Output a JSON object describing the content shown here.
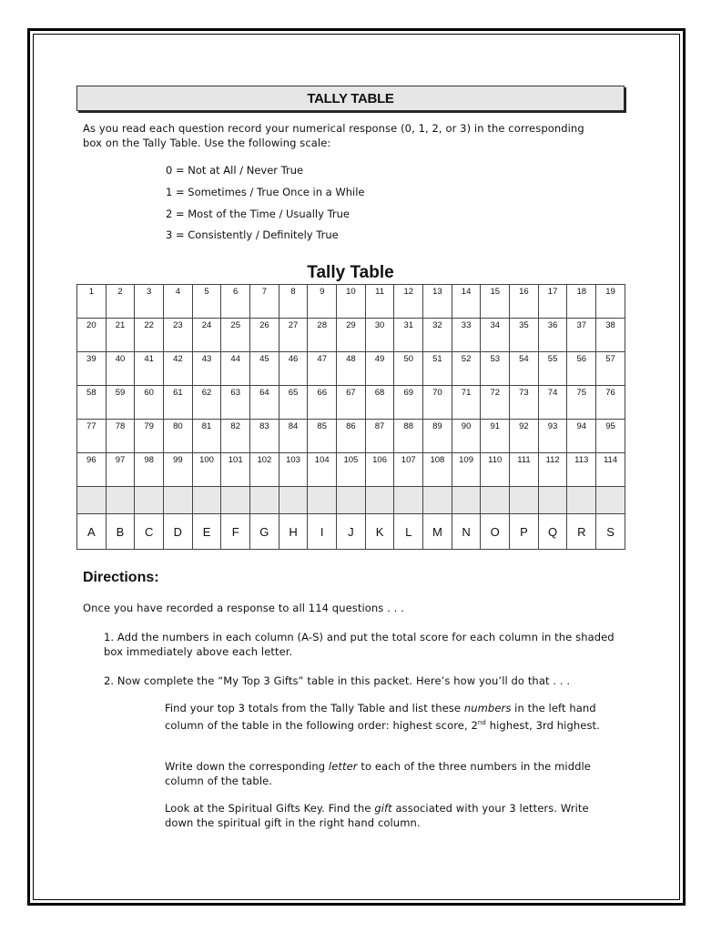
{
  "banner_title": "TALLY TABLE",
  "intro": "As you read each question record your numerical response (0, 1, 2, or 3) in the corresponding box on the Tally Table.  Use the following scale:",
  "scale": [
    "0 = Not at All / Never True",
    "1 = Sometimes / True Once in a While",
    "2 = Most of the Time / Usually True",
    "3 = Consistently / Definitely True"
  ],
  "table_title": "Tally Table",
  "rows": [
    [
      "1",
      "2",
      "3",
      "4",
      "5",
      "6",
      "7",
      "8",
      "9",
      "10",
      "11",
      "12",
      "13",
      "14",
      "15",
      "16",
      "17",
      "18",
      "19"
    ],
    [
      "20",
      "21",
      "22",
      "23",
      "24",
      "25",
      "26",
      "27",
      "28",
      "29",
      "30",
      "31",
      "32",
      "33",
      "34",
      "35",
      "36",
      "37",
      "38"
    ],
    [
      "39",
      "40",
      "41",
      "42",
      "43",
      "44",
      "45",
      "46",
      "47",
      "48",
      "49",
      "50",
      "51",
      "52",
      "53",
      "54",
      "55",
      "56",
      "57"
    ],
    [
      "58",
      "59",
      "60",
      "61",
      "62",
      "63",
      "64",
      "65",
      "66",
      "67",
      "68",
      "69",
      "70",
      "71",
      "72",
      "73",
      "74",
      "75",
      "76"
    ],
    [
      "77",
      "78",
      "79",
      "80",
      "81",
      "82",
      "83",
      "84",
      "85",
      "86",
      "87",
      "88",
      "89",
      "90",
      "91",
      "92",
      "93",
      "94",
      "95"
    ],
    [
      "96",
      "97",
      "98",
      "99",
      "100",
      "101",
      "102",
      "103",
      "104",
      "105",
      "106",
      "107",
      "108",
      "109",
      "110",
      "111",
      "112",
      "113",
      "114"
    ]
  ],
  "letters": [
    "A",
    "B",
    "C",
    "D",
    "E",
    "F",
    "G",
    "H",
    "I",
    "J",
    "K",
    "L",
    "M",
    "N",
    "O",
    "P",
    "Q",
    "R",
    "S"
  ],
  "directions": {
    "heading": "Directions:",
    "lead": "Once you have recorded a response to all 114 questions . . .",
    "step1": "1. Add the numbers in each column (A-S) and put the total score for each column in the shaded box immediately above each letter.",
    "step2": "2. Now complete the “My Top 3 Gifts” table in this packet.  Here’s how you’ll do that . . .",
    "p1_a": "Find your top 3 totals from the Tally Table and list these ",
    "p1_em": "numbers",
    "p1_b": " in the left hand column of the table in the following order: highest score, 2",
    "p1_sup": "nd",
    "p1_c": " highest, 3rd highest.",
    "p2_a": "Write down the corresponding ",
    "p2_em": "letter",
    "p2_b": " to each of the three numbers in the middle column of the table.",
    "p3_a": "Look at the Spiritual Gifts Key.  Find the ",
    "p3_em": "gift",
    "p3_b": " associated with your 3 letters. Write down the spiritual gift in the right hand column."
  }
}
